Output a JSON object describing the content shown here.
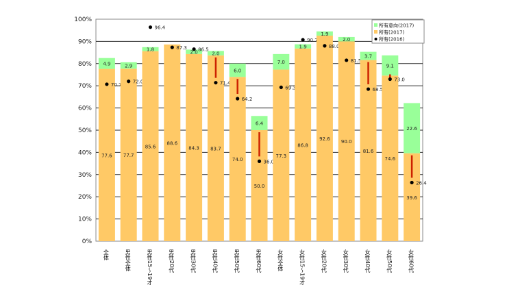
{
  "chart_data": {
    "type": "bar",
    "stacked": true,
    "ylim": [
      0,
      100
    ],
    "yticks": [
      "0%",
      "10%",
      "20%",
      "30%",
      "40%",
      "50%",
      "60%",
      "70%",
      "80%",
      "90%",
      "100%"
    ],
    "grid": true,
    "legend_position": "top-right",
    "categories": [
      "全体",
      "男性全体",
      "男性15～19才",
      "男性20代",
      "男性30代",
      "男性40代",
      "男性50代",
      "男性60代",
      "女性全体",
      "女性15～19才",
      "女性20代",
      "女性30代",
      "女性40代",
      "女性50代",
      "女性60代"
    ],
    "series": [
      {
        "name": "所有(2017)",
        "kind": "bar",
        "color": "#FFC966",
        "values": [
          77.6,
          77.7,
          85.6,
          88.6,
          84.3,
          83.7,
          74.0,
          50.0,
          77.3,
          86.8,
          92.6,
          90.0,
          81.6,
          74.6,
          39.6
        ]
      },
      {
        "name": "所有意向(2017)",
        "kind": "bar",
        "color": "#99FF99",
        "values": [
          4.9,
          2.9,
          1.8,
          null,
          2.0,
          2.0,
          6.0,
          6.4,
          7.0,
          1.9,
          1.9,
          2.0,
          3.7,
          9.1,
          22.6
        ]
      },
      {
        "name": "所有(2016)",
        "kind": "point",
        "color": "#000000",
        "values": [
          70.7,
          72.0,
          96.4,
          87.3,
          86.5,
          71.4,
          64.2,
          36.0,
          69.3,
          90.7,
          88.0,
          81.5,
          68.5,
          73.0,
          26.4
        ]
      }
    ],
    "decline_markers": [
      false,
      false,
      false,
      false,
      false,
      true,
      true,
      true,
      false,
      false,
      false,
      false,
      true,
      true,
      true
    ],
    "decline_marker_color": "#CC2200"
  }
}
